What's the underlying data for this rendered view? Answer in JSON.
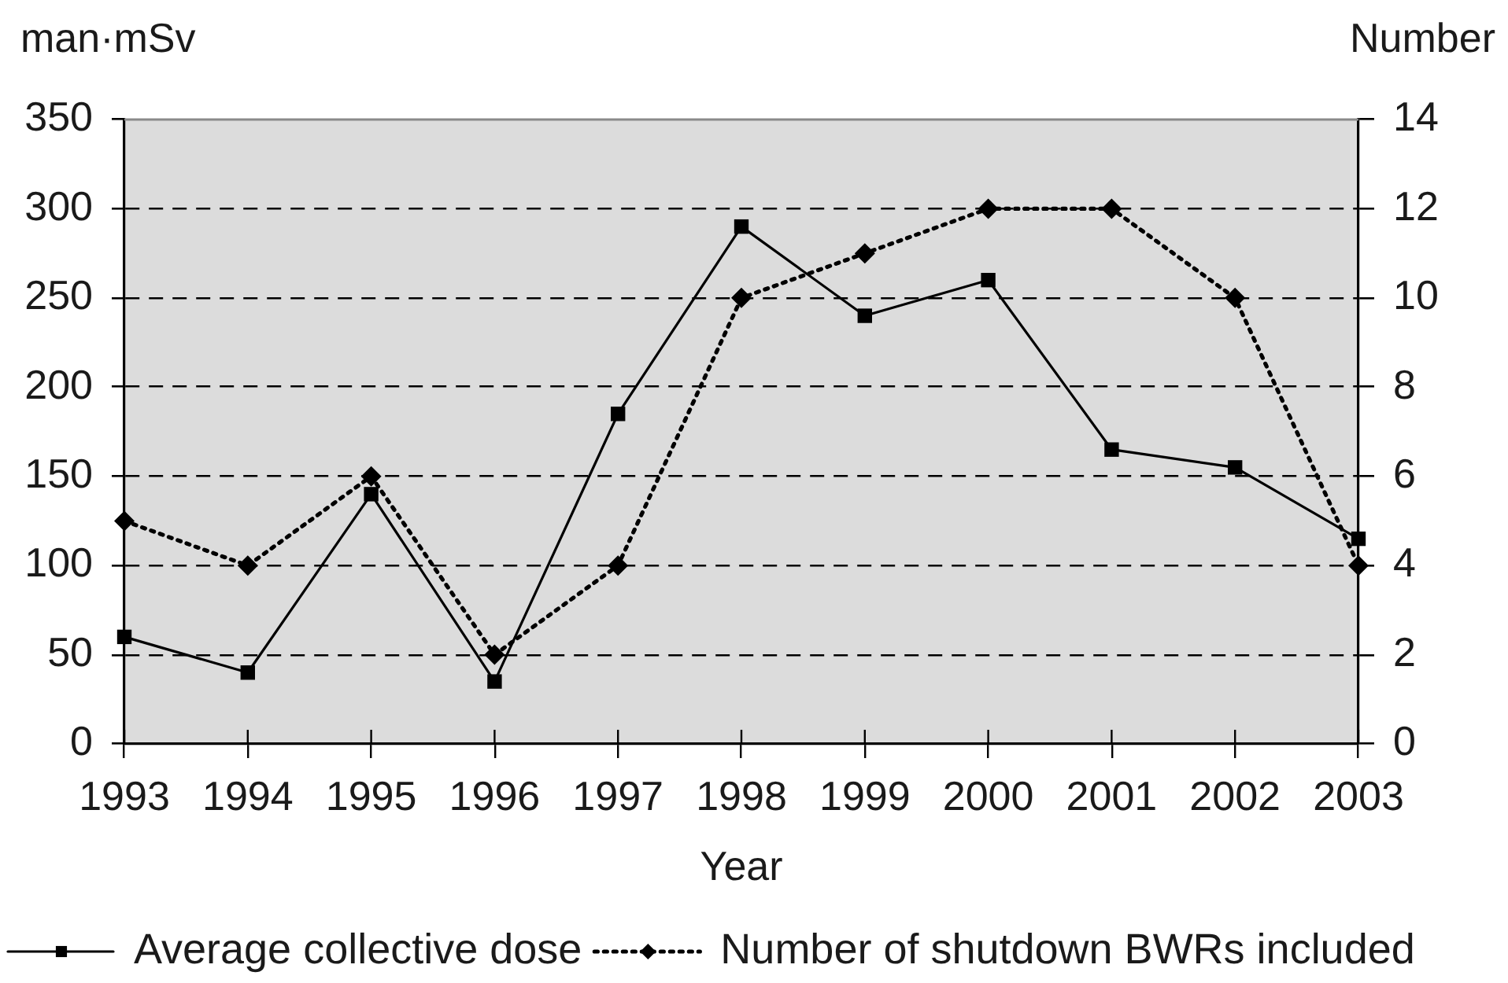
{
  "chart_data": {
    "type": "line",
    "xlabel": "Year",
    "ylabel": "man·mSv",
    "y2label": "Number",
    "categories": [
      "1993",
      "1994",
      "1995",
      "1996",
      "1997",
      "1998",
      "1999",
      "2000",
      "2001",
      "2002",
      "2003"
    ],
    "series": [
      {
        "name": "Average collective dose",
        "color": "#000000",
        "values": [
          60,
          40,
          140,
          35,
          185,
          290,
          240,
          260,
          165,
          155,
          115
        ],
        "marker": "square",
        "line_style": "solid"
      },
      {
        "name": "Number of shutdown BWRs included",
        "color": "#000000",
        "values": [
          5,
          4,
          6,
          2,
          4,
          10,
          11,
          12,
          12,
          10,
          4
        ],
        "axis": "y2",
        "marker": "diamond",
        "line_style": "dotted"
      }
    ],
    "ylim": [
      0,
      350
    ],
    "yticks": [
      0,
      50,
      100,
      150,
      200,
      250,
      300,
      350
    ],
    "y2lim": [
      0,
      14
    ],
    "y2ticks": [
      0,
      2,
      4,
      6,
      8,
      10,
      12,
      14
    ],
    "grid": "y",
    "legend": "bottom"
  }
}
